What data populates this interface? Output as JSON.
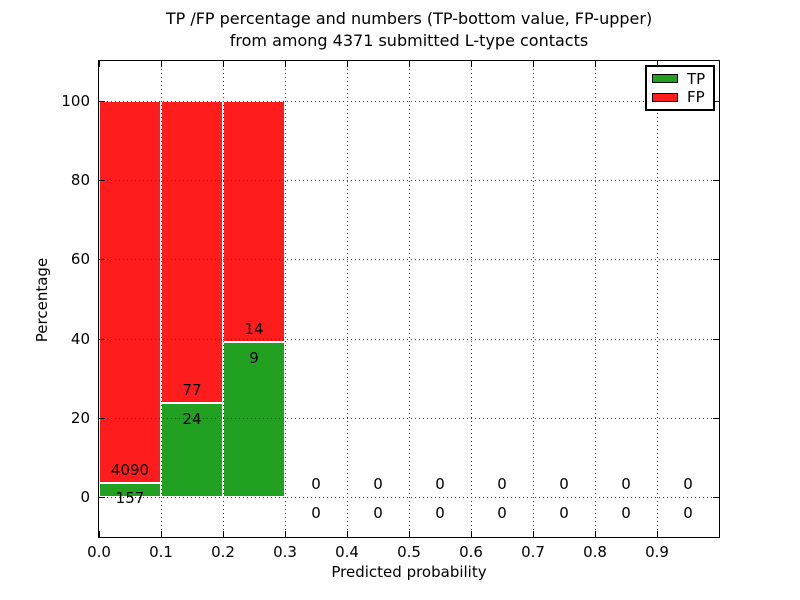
{
  "chart_data": {
    "type": "bar",
    "stacked": true,
    "title_line1": "TP /FP percentage and numbers (TP-bottom value, FP-upper)",
    "title_line2": "from among 4371 submitted L-type contacts",
    "xlabel": "Predicted probability",
    "ylabel": "Percentage",
    "xlim": [
      0.0,
      1.0
    ],
    "ylim": [
      -10,
      110
    ],
    "xticks": [
      "0.0",
      "0.1",
      "0.2",
      "0.3",
      "0.4",
      "0.5",
      "0.6",
      "0.7",
      "0.8",
      "0.9"
    ],
    "yticks": [
      0,
      20,
      40,
      60,
      80,
      100
    ],
    "grid": "dotted",
    "total_submitted": 4371,
    "annotation_note": "TP count below segment boundary, FP count above segment boundary",
    "bin_width": 0.1,
    "bins": [
      {
        "start": 0.0,
        "end": 0.1,
        "tp_count": 157,
        "fp_count": 4090,
        "tp_pct": 3.7,
        "fp_pct": 96.3
      },
      {
        "start": 0.1,
        "end": 0.2,
        "tp_count": 24,
        "fp_count": 77,
        "tp_pct": 23.76,
        "fp_pct": 76.24
      },
      {
        "start": 0.2,
        "end": 0.3,
        "tp_count": 9,
        "fp_count": 14,
        "tp_pct": 39.13,
        "fp_pct": 60.87
      },
      {
        "start": 0.3,
        "end": 0.4,
        "tp_count": 0,
        "fp_count": 0,
        "tp_pct": 0,
        "fp_pct": 0
      },
      {
        "start": 0.4,
        "end": 0.5,
        "tp_count": 0,
        "fp_count": 0,
        "tp_pct": 0,
        "fp_pct": 0
      },
      {
        "start": 0.5,
        "end": 0.6,
        "tp_count": 0,
        "fp_count": 0,
        "tp_pct": 0,
        "fp_pct": 0
      },
      {
        "start": 0.6,
        "end": 0.7,
        "tp_count": 0,
        "fp_count": 0,
        "tp_pct": 0,
        "fp_pct": 0
      },
      {
        "start": 0.7,
        "end": 0.8,
        "tp_count": 0,
        "fp_count": 0,
        "tp_pct": 0,
        "fp_pct": 0
      },
      {
        "start": 0.8,
        "end": 0.9,
        "tp_count": 0,
        "fp_count": 0,
        "tp_pct": 0,
        "fp_pct": 0
      },
      {
        "start": 0.9,
        "end": 1.0,
        "tp_count": 0,
        "fp_count": 0,
        "tp_pct": 0,
        "fp_pct": 0
      }
    ],
    "colors": {
      "tp": "#22a022",
      "fp": "#ff1c1c",
      "grid": "#3a3a3a",
      "axis": "#000000"
    },
    "legend": {
      "position": "upper right",
      "entries": [
        {
          "label": "TP",
          "color": "#22a022"
        },
        {
          "label": "FP",
          "color": "#ff1c1c"
        }
      ]
    }
  }
}
